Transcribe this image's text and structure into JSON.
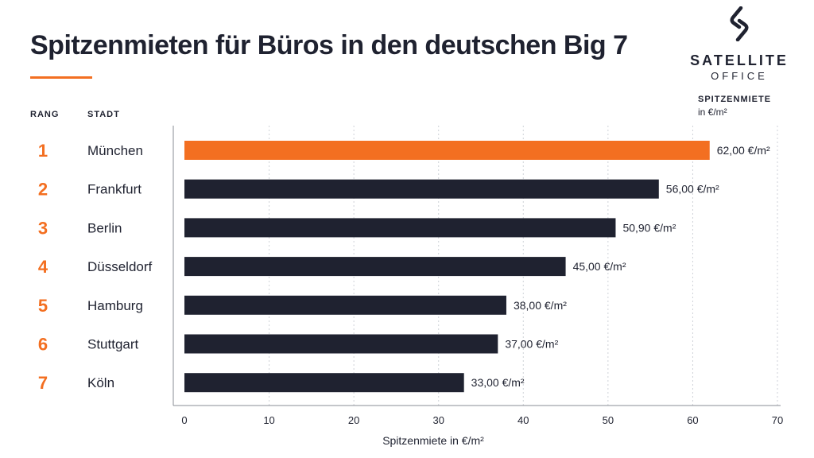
{
  "header": {
    "title": "Spitzenmieten für Büros in den deutschen Big 7"
  },
  "logo": {
    "name": "SATELLITE",
    "sub": "OFFICE",
    "icon": "s-logo-icon"
  },
  "columns": {
    "rank": "RANG",
    "city": "STADT",
    "value": "SPITZENMIETE",
    "value_unit": "in €/m²"
  },
  "colors": {
    "highlight": "#f36f21",
    "bar": "#1f2230",
    "grid": "#cfd2d8"
  },
  "chart_data": {
    "type": "bar",
    "orientation": "horizontal",
    "ranks": [
      "1",
      "2",
      "3",
      "4",
      "5",
      "6",
      "7"
    ],
    "categories": [
      "München",
      "Frankfurt",
      "Berlin",
      "Düsseldorf",
      "Hamburg",
      "Stuttgart",
      "Köln"
    ],
    "values": [
      62.0,
      56.0,
      50.9,
      45.0,
      38.0,
      37.0,
      33.0
    ],
    "value_labels": [
      "62,00 €/m²",
      "56,00 €/m²",
      "50,90 €/m²",
      "45,00 €/m²",
      "38,00 €/m²",
      "37,00 €/m²",
      "33,00 €/m²"
    ],
    "highlight_index": 0,
    "xlabel": "Spitzenmiete in €/m²",
    "xlim": [
      0,
      70
    ],
    "xticks": [
      0,
      10,
      20,
      30,
      40,
      50,
      60,
      70
    ],
    "grid": "vertical-dotted"
  }
}
